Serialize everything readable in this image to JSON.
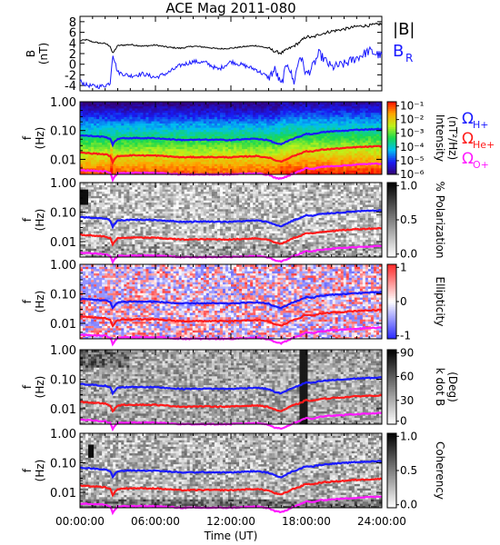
{
  "title": "ACE Mag 2011-080",
  "x_axis": {
    "label": "Time (UT)",
    "ticks": [
      "00:00:00",
      "06:00:00",
      "12:00:00",
      "18:00:00",
      "24:00:00"
    ],
    "range_hours": [
      0,
      24
    ]
  },
  "legend": {
    "field": [
      {
        "label": "|B|",
        "color": "#000000"
      },
      {
        "label": "B",
        "sub": "R",
        "color": "#1a1aff"
      }
    ],
    "gyro": [
      {
        "label": "Ω",
        "sub": "H+",
        "color": "#1a1aff"
      },
      {
        "label": "Ω",
        "sub": "He+",
        "color": "#ff1a1a"
      },
      {
        "label": "Ω",
        "sub": "O+",
        "color": "#ff1aff"
      }
    ]
  },
  "chart_data": [
    {
      "type": "line",
      "panel": "field",
      "ylabel": "B",
      "yunit": "(nT)",
      "ylim": [
        -5,
        9
      ],
      "yticks": [
        "8",
        "6",
        "4",
        "2",
        "0",
        "-2",
        "-4"
      ],
      "x": [
        0,
        0.5,
        1,
        1.5,
        2,
        2.4,
        2.6,
        3,
        4,
        5,
        6,
        7,
        8,
        9,
        10,
        11,
        12,
        13,
        14,
        15,
        15.5,
        16,
        16.5,
        17,
        17.5,
        18,
        18.5,
        19,
        20,
        21,
        22,
        23,
        24
      ],
      "series": [
        {
          "name": "|B|",
          "color": "#000000",
          "values": [
            4.4,
            4.6,
            4.2,
            4.0,
            3.9,
            3.4,
            2.0,
            3.5,
            3.7,
            3.4,
            3.6,
            3.2,
            3.0,
            3.4,
            3.2,
            2.9,
            3.0,
            3.3,
            3.5,
            3.0,
            2.4,
            2.1,
            2.8,
            3.4,
            4.2,
            5.2,
            5.0,
            5.6,
            6.2,
            6.6,
            7.1,
            7.3,
            7.6
          ]
        },
        {
          "name": "B_R",
          "color": "#1a1aff",
          "values": [
            -3.2,
            -3.9,
            -4.1,
            -4.2,
            -4.0,
            -3.5,
            2.0,
            -1.5,
            -2.2,
            -1.8,
            -2.5,
            -1.6,
            -0.2,
            0.5,
            0.3,
            -1.0,
            0.5,
            -0.2,
            -1.0,
            -2.5,
            -1.0,
            -4.0,
            0.5,
            -3.5,
            1.8,
            -2.0,
            -0.5,
            2.0,
            -0.6,
            0.0,
            1.2,
            2.5,
            1.5
          ]
        }
      ]
    },
    {
      "type": "heatmap",
      "panel": "intensity",
      "ylabel": "f",
      "yunit": "(Hz)",
      "yscale": "log",
      "ylim": [
        0.003,
        1
      ],
      "yticks": [
        "1.00",
        "0.10",
        "0.01"
      ],
      "colorbar": {
        "label": "Intensity",
        "unit": "(nT²/Hz)",
        "ticks": [
          "10⁻¹",
          "10⁻²",
          "10⁻³",
          "10⁻⁴",
          "10⁻⁵",
          "10⁻⁶"
        ],
        "scale": "log",
        "range": [
          1e-06,
          0.2
        ],
        "palette": "rainbow"
      }
    },
    {
      "type": "heatmap",
      "panel": "polarization",
      "ylabel": "f",
      "yunit": "(Hz)",
      "yscale": "log",
      "ylim": [
        0.003,
        1
      ],
      "yticks": [
        "1.00",
        "0.10",
        "0.01"
      ],
      "colorbar": {
        "label": "% Polarization",
        "ticks": [
          "1.0",
          "0.5",
          "0.0"
        ],
        "range": [
          0,
          1
        ],
        "palette": "gray"
      }
    },
    {
      "type": "heatmap",
      "panel": "ellipticity",
      "ylabel": "f",
      "yunit": "(Hz)",
      "yscale": "log",
      "ylim": [
        0.003,
        1
      ],
      "yticks": [
        "1.00",
        "0.10",
        "0.01"
      ],
      "colorbar": {
        "label": "Ellipticity",
        "ticks": [
          "1",
          "0",
          "-1"
        ],
        "range": [
          -1,
          1
        ],
        "palette": "blue-white-red"
      }
    },
    {
      "type": "heatmap",
      "panel": "kdotb",
      "ylabel": "f",
      "yunit": "(Hz)",
      "yscale": "log",
      "ylim": [
        0.003,
        1
      ],
      "yticks": [
        "1.00",
        "0.10",
        "0.01"
      ],
      "colorbar": {
        "label": "k dot B",
        "unit": "(Deg)",
        "ticks": [
          "90",
          "60",
          "30",
          "0"
        ],
        "range": [
          0,
          90
        ],
        "palette": "gray"
      }
    },
    {
      "type": "heatmap",
      "panel": "coherency",
      "ylabel": "f",
      "yunit": "(Hz)",
      "yscale": "log",
      "ylim": [
        0.003,
        1
      ],
      "yticks": [
        "1.00",
        "0.10",
        "0.01"
      ],
      "colorbar": {
        "label": "Coherency",
        "ticks": [
          "1.0",
          "0.5",
          "0.0"
        ],
        "range": [
          0,
          1
        ],
        "palette": "gray"
      }
    },
    {
      "type": "line",
      "panel": "gyrofrequency-overlay",
      "note_units": "Hz",
      "x": [
        0,
        1,
        2,
        2.4,
        2.6,
        3,
        4,
        6,
        8,
        10,
        12,
        14,
        15,
        15.5,
        16,
        16.5,
        17,
        17.5,
        18,
        18.5,
        19,
        20,
        21,
        22,
        23,
        24
      ],
      "series": [
        {
          "name": "Ω_H+",
          "color": "#1a1aff",
          "values": [
            0.068,
            0.064,
            0.06,
            0.052,
            0.032,
            0.052,
            0.055,
            0.054,
            0.047,
            0.048,
            0.047,
            0.052,
            0.046,
            0.037,
            0.033,
            0.042,
            0.053,
            0.062,
            0.078,
            0.074,
            0.084,
            0.093,
            0.098,
            0.106,
            0.11,
            0.114
          ]
        },
        {
          "name": "Ω_He+",
          "color": "#ff1a1a",
          "values": [
            0.017,
            0.016,
            0.015,
            0.013,
            0.008,
            0.013,
            0.0138,
            0.0135,
            0.0118,
            0.012,
            0.0118,
            0.013,
            0.0115,
            0.0093,
            0.0083,
            0.0105,
            0.0133,
            0.0155,
            0.0195,
            0.0185,
            0.021,
            0.023,
            0.0245,
            0.0265,
            0.0275,
            0.0285
          ]
        },
        {
          "name": "Ω_O+",
          "color": "#ff1aff",
          "values": [
            0.0042,
            0.004,
            0.0038,
            0.0033,
            0.002,
            0.0033,
            0.0034,
            0.0034,
            0.003,
            0.003,
            0.003,
            0.0033,
            0.0029,
            0.0023,
            0.0021,
            0.0026,
            0.0033,
            0.0039,
            0.0049,
            0.0046,
            0.0053,
            0.0058,
            0.0061,
            0.0066,
            0.0069,
            0.0071
          ]
        }
      ]
    }
  ]
}
